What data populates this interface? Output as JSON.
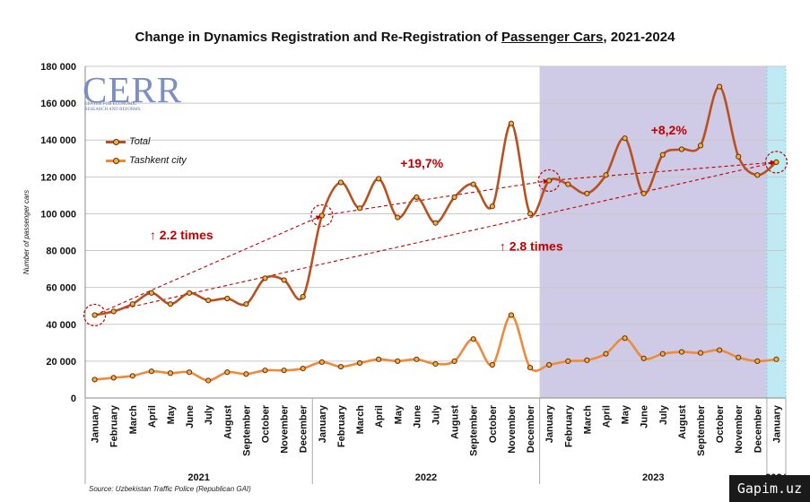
{
  "title_parts": {
    "before": "Change in Dynamics Registration and Re-Registration of ",
    "underlined": "Passenger Cars",
    "after": ", 2021-2024"
  },
  "logo": {
    "main": "CERR",
    "sub": "CENTER FOR ECONOMIC RESEARCH AND REFORMS"
  },
  "source": "Source: Uzbekistan Traffic Police (Republican GAI)",
  "watermark": "Gapim.uz",
  "colors": {
    "total": "#b8511f",
    "tashkent": "#ee8a3c",
    "marker_fill": "#f1b23a",
    "marker_edge": "#6b2a0f",
    "annotation": "#c00000",
    "shade_2023": "#cfcbe6",
    "shade_2024": "#bfeaf3",
    "grid": "#c8c8c8"
  },
  "chart_data": {
    "type": "line",
    "ylabel": "Number of passenger cars",
    "ylim": [
      0,
      180000
    ],
    "yticks": [
      "0",
      "20 000",
      "40 000",
      "60 000",
      "80 000",
      "100 000",
      "120 000",
      "140 000",
      "160 000",
      "180 000"
    ],
    "categories": [
      "January",
      "February",
      "March",
      "April",
      "May",
      "June",
      "July",
      "August",
      "September",
      "October",
      "November",
      "December",
      "January",
      "February",
      "March",
      "April",
      "May",
      "June",
      "July",
      "August",
      "September",
      "October",
      "November",
      "December",
      "January",
      "February",
      "March",
      "April",
      "May",
      "June",
      "July",
      "August",
      "September",
      "October",
      "November",
      "December",
      "January"
    ],
    "years": [
      {
        "label": "2021",
        "start": 0,
        "end": 11
      },
      {
        "label": "2022",
        "start": 12,
        "end": 23
      },
      {
        "label": "2023",
        "start": 24,
        "end": 35
      },
      {
        "label": "2024",
        "start": 36,
        "end": 36
      }
    ],
    "series": [
      {
        "name": "Total",
        "values": [
          45000,
          47000,
          51000,
          57000,
          51000,
          57000,
          53000,
          54000,
          51000,
          65000,
          64000,
          55000,
          99000,
          117000,
          103000,
          119000,
          98000,
          109000,
          95000,
          109000,
          116000,
          104000,
          149000,
          100000,
          118000,
          116000,
          111000,
          121000,
          141000,
          111000,
          132000,
          135000,
          137000,
          169000,
          131000,
          121000,
          128000
        ]
      },
      {
        "name": "Tashkent city",
        "values": [
          10000,
          11000,
          12000,
          14500,
          13500,
          14000,
          9500,
          14000,
          13000,
          15000,
          15000,
          16000,
          19500,
          17000,
          19000,
          21000,
          20000,
          21000,
          18500,
          20000,
          32000,
          18000,
          45000,
          16500,
          18000,
          20000,
          20500,
          24000,
          32500,
          21500,
          24000,
          25000,
          24500,
          26000,
          22000,
          20000,
          21000
        ]
      }
    ],
    "legend": "top-left",
    "grid": "horizontal",
    "annotations": [
      {
        "text": "↑ 2.2 times"
      },
      {
        "text": "+19,7%"
      },
      {
        "text": "↑ 2.8 times"
      },
      {
        "text": "+8,2%"
      }
    ]
  }
}
